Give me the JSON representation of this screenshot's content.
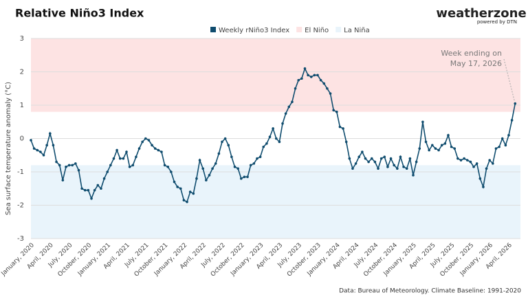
{
  "chart_data": {
    "type": "line",
    "title": "Relative Niño3 Index",
    "logo": {
      "brand": "weatherzone",
      "tagline": "powered by DTN"
    },
    "y_label": "Sea surface temperature anomaly (°C)",
    "source": "Data: Bureau of Meteorology. Climate Baseline: 1991-2020",
    "annotation": [
      "Week ending on",
      "May 17, 2026"
    ],
    "ylim": [
      -3,
      3
    ],
    "yticks": [
      -3,
      -2,
      -1,
      0,
      1,
      2,
      3
    ],
    "grid": true,
    "bands": [
      {
        "name": "El Niño",
        "color": "#fde3e3",
        "range": [
          0.8,
          3
        ]
      },
      {
        "name": "La Niña",
        "color": "#e9f4fb",
        "range": [
          -3,
          -0.8
        ]
      }
    ],
    "categories": [
      "January, 2020",
      null,
      null,
      null,
      null,
      null,
      "April, 2020",
      null,
      null,
      null,
      null,
      null,
      "July, 2020",
      null,
      null,
      null,
      null,
      null,
      "October, 2020",
      null,
      null,
      null,
      null,
      null,
      "January, 2021",
      null,
      null,
      null,
      null,
      null,
      "April, 2021",
      null,
      null,
      null,
      null,
      null,
      "July, 2021",
      null,
      null,
      null,
      null,
      null,
      "October, 2021",
      null,
      null,
      null,
      null,
      null,
      "January, 2022",
      null,
      null,
      null,
      null,
      null,
      "April, 2022",
      null,
      null,
      null,
      null,
      null,
      "July, 2022",
      null,
      null,
      null,
      null,
      null,
      "October, 2022",
      null,
      null,
      null,
      null,
      null,
      "January, 2023",
      null,
      null,
      null,
      null,
      null,
      "April, 2023",
      null,
      null,
      null,
      null,
      null,
      "July, 2023",
      null,
      null,
      null,
      null,
      null,
      "October, 2023",
      null,
      null,
      null,
      null,
      null,
      "January, 2024",
      null,
      null,
      null,
      null,
      null,
      "April, 2024",
      null,
      null,
      null,
      null,
      null,
      "July, 2024",
      null,
      null,
      null,
      null,
      null,
      "October, 2024",
      null,
      null,
      null,
      null,
      null,
      "January, 2025",
      null,
      null,
      null,
      null,
      null,
      "April, 2025",
      null,
      null,
      null,
      null,
      null,
      "July, 2025",
      null,
      null,
      null,
      null,
      null,
      "October, 2025",
      null,
      null,
      null,
      null,
      null,
      "January, 2026",
      null,
      null,
      null,
      null,
      null,
      "April, 2026",
      null,
      null
    ],
    "series": [
      {
        "name": "Weekly rNiño3 Index",
        "color": "#0f4c6e",
        "values": [
          -0.05,
          -0.3,
          -0.35,
          -0.4,
          -0.5,
          -0.2,
          0.15,
          -0.2,
          -0.7,
          -0.8,
          -1.25,
          -0.85,
          -0.8,
          -0.8,
          -0.75,
          -0.95,
          -1.5,
          -1.55,
          -1.55,
          -1.8,
          -1.55,
          -1.4,
          -1.5,
          -1.2,
          -1.0,
          -0.8,
          -0.6,
          -0.35,
          -0.6,
          -0.6,
          -0.4,
          -0.85,
          -0.8,
          -0.55,
          -0.3,
          -0.1,
          0.0,
          -0.05,
          -0.2,
          -0.3,
          -0.35,
          -0.4,
          -0.8,
          -0.85,
          -1.0,
          -1.3,
          -1.45,
          -1.5,
          -1.85,
          -1.9,
          -1.6,
          -1.65,
          -1.2,
          -0.65,
          -0.9,
          -1.25,
          -1.1,
          -0.9,
          -0.75,
          -0.45,
          -0.1,
          0.0,
          -0.2,
          -0.55,
          -0.85,
          -0.9,
          -1.2,
          -1.15,
          -1.15,
          -0.8,
          -0.75,
          -0.6,
          -0.55,
          -0.25,
          -0.15,
          0.05,
          0.3,
          0.0,
          -0.1,
          0.45,
          0.75,
          0.95,
          1.1,
          1.5,
          1.75,
          1.8,
          2.1,
          1.9,
          1.85,
          1.9,
          1.9,
          1.75,
          1.65,
          1.5,
          1.35,
          0.85,
          0.8,
          0.35,
          0.3,
          -0.1,
          -0.6,
          -0.9,
          -0.75,
          -0.55,
          -0.4,
          -0.6,
          -0.7,
          -0.6,
          -0.7,
          -0.9,
          -0.6,
          -0.55,
          -0.85,
          -0.6,
          -0.8,
          -0.9,
          -0.55,
          -0.85,
          -0.9,
          -0.6,
          -1.1,
          -0.7,
          -0.3,
          0.5,
          -0.1,
          -0.35,
          -0.2,
          -0.3,
          -0.35,
          -0.2,
          -0.15,
          0.1,
          -0.25,
          -0.3,
          -0.6,
          -0.65,
          -0.6,
          -0.65,
          -0.7,
          -0.85,
          -0.75,
          -1.2,
          -1.45,
          -0.9,
          -0.65,
          -0.75,
          -0.3,
          -0.25,
          0.0,
          -0.2,
          0.1,
          0.55,
          1.05
        ]
      }
    ]
  }
}
